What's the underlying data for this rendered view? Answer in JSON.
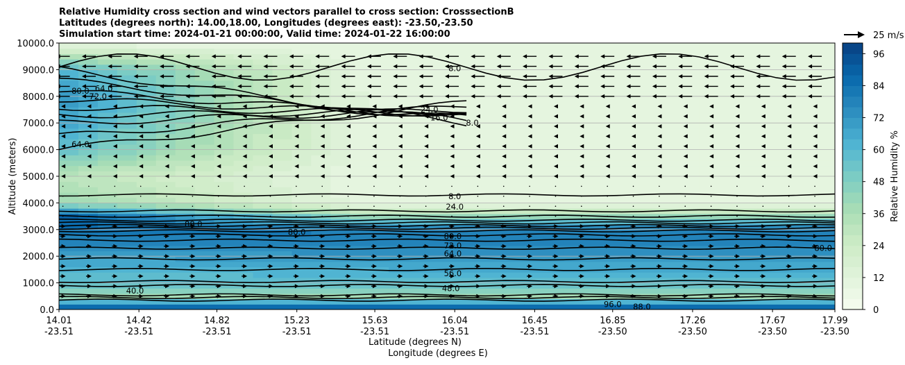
{
  "chart_data": {
    "type": "contourf",
    "title_lines": [
      "Relative Humidity cross section and wind vectors parallel to cross section: CrosssectionB",
      "Latitudes (degrees north): 14.00,18.00, Longitudes (degrees east): -23.50,-23.50",
      "Simulation start time: 2024-01-21 00:00:00, Valid time: 2024-01-22 16:00:00"
    ],
    "xlabel_lat": "Latitude (degrees N)",
    "xlabel_lon": "Longitude (degrees E)",
    "ylabel": "Altitude (meters)",
    "colorbar_label": "Relative Humidity %",
    "quiver_key_label": "25 m/s",
    "ylim": [
      0,
      10000
    ],
    "x_ticks": [
      {
        "lat": "14.01",
        "lon": "-23.51"
      },
      {
        "lat": "14.42",
        "lon": "-23.51"
      },
      {
        "lat": "14.82",
        "lon": "-23.51"
      },
      {
        "lat": "15.23",
        "lon": "-23.51"
      },
      {
        "lat": "15.63",
        "lon": "-23.51"
      },
      {
        "lat": "16.04",
        "lon": "-23.51"
      },
      {
        "lat": "16.45",
        "lon": "-23.51"
      },
      {
        "lat": "16.85",
        "lon": "-23.50"
      },
      {
        "lat": "17.26",
        "lon": "-23.50"
      },
      {
        "lat": "17.67",
        "lon": "-23.50"
      },
      {
        "lat": "17.99",
        "lon": "-23.50"
      }
    ],
    "y_ticks": [
      "0.0",
      "1000.0",
      "2000.0",
      "3000.0",
      "4000.0",
      "5000.0",
      "6000.0",
      "7000.0",
      "8000.0",
      "9000.0",
      "10000.0"
    ],
    "colorbar_ticks": [
      "0",
      "12",
      "24",
      "36",
      "48",
      "60",
      "72",
      "84",
      "96"
    ],
    "colorbar_range": [
      0,
      100
    ],
    "grid": "horizontal",
    "colormap": [
      "#f7fcf0",
      "#e0f3db",
      "#ccebc5",
      "#a8ddb5",
      "#7bccc4",
      "#4eb3d3",
      "#2b8cbe",
      "#0868ac",
      "#084081"
    ],
    "contour_levels": [
      8,
      16,
      24,
      32,
      40,
      48,
      56,
      64,
      72,
      80,
      88,
      96
    ],
    "rh_profile_left": [
      {
        "alt": 0,
        "rh": 95
      },
      {
        "alt": 500,
        "rh": 40
      },
      {
        "alt": 1000,
        "rh": 55
      },
      {
        "alt": 2000,
        "rh": 68
      },
      {
        "alt": 3000,
        "rh": 85
      },
      {
        "alt": 3500,
        "rh": 88
      },
      {
        "alt": 4000,
        "rh": 40
      },
      {
        "alt": 5000,
        "rh": 30
      },
      {
        "alt": 6000,
        "rh": 55
      },
      {
        "alt": 7000,
        "rh": 65
      },
      {
        "alt": 8000,
        "rh": 70
      },
      {
        "alt": 9000,
        "rh": 60
      },
      {
        "alt": 10000,
        "rh": 8
      }
    ],
    "rh_profile_right": [
      {
        "alt": 0,
        "rh": 96
      },
      {
        "alt": 500,
        "rh": 36
      },
      {
        "alt": 1000,
        "rh": 56
      },
      {
        "alt": 2000,
        "rh": 72
      },
      {
        "alt": 3000,
        "rh": 80
      },
      {
        "alt": 3700,
        "rh": 24
      },
      {
        "alt": 4000,
        "rh": 8
      },
      {
        "alt": 10000,
        "rh": 8
      }
    ],
    "contour_labels": [
      {
        "text": "8.0",
        "lat": 16.04,
        "alt": 9050
      },
      {
        "text": "8.0",
        "lat": 16.13,
        "alt": 7000
      },
      {
        "text": "8.0",
        "lat": 16.04,
        "alt": 4250
      },
      {
        "text": "24.0",
        "lat": 16.04,
        "alt": 3850
      },
      {
        "text": "80.0",
        "lat": 16.03,
        "alt": 2750
      },
      {
        "text": "72.0",
        "lat": 16.03,
        "alt": 2400
      },
      {
        "text": "64.0",
        "lat": 16.03,
        "alt": 2100
      },
      {
        "text": "56.0",
        "lat": 16.03,
        "alt": 1350
      },
      {
        "text": "16.0",
        "lat": 15.96,
        "alt": 7200
      },
      {
        "text": "24.0",
        "lat": 15.91,
        "alt": 7500
      },
      {
        "text": "88.0",
        "lat": 14.7,
        "alt": 3200
      },
      {
        "text": "80.0",
        "lat": 15.23,
        "alt": 2900
      },
      {
        "text": "64.0",
        "lat": 14.12,
        "alt": 6200
      },
      {
        "text": "80.0",
        "lat": 14.12,
        "alt": 8200
      },
      {
        "text": "72.0",
        "lat": 14.21,
        "alt": 8000
      },
      {
        "text": "64.0",
        "lat": 14.24,
        "alt": 8300
      },
      {
        "text": "96.0",
        "lat": 16.85,
        "alt": 200
      },
      {
        "text": "88.0",
        "lat": 17.0,
        "alt": 100
      },
      {
        "text": "80.0",
        "lat": 17.93,
        "alt": 2300
      },
      {
        "text": "48.0",
        "lat": 16.02,
        "alt": 800
      },
      {
        "text": "40.0",
        "lat": 14.4,
        "alt": 700
      }
    ],
    "wind": {
      "upper_u": -20,
      "mid_u": -5,
      "lower_u": 8,
      "upper_alt": [
        8000,
        10000
      ],
      "mid_alt": [
        5000,
        8000
      ],
      "calm_alt": [
        3500,
        5000
      ],
      "lower_alt": [
        500,
        3500
      ]
    }
  }
}
